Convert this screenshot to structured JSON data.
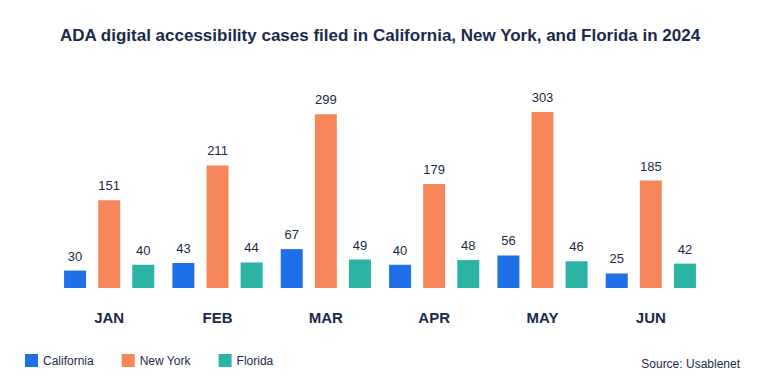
{
  "chart_data": {
    "type": "bar",
    "title": "ADA digital accessibility cases filed in California, New York, and Florida in 2024",
    "categories": [
      "JAN",
      "FEB",
      "MAR",
      "APR",
      "MAY",
      "JUN"
    ],
    "series": [
      {
        "name": "California",
        "color": "#1f6fe8",
        "values": [
          30,
          43,
          67,
          40,
          56,
          25
        ]
      },
      {
        "name": "New York",
        "color": "#f7875a",
        "values": [
          151,
          211,
          299,
          179,
          303,
          185
        ]
      },
      {
        "name": "Florida",
        "color": "#2bb3a3",
        "values": [
          40,
          44,
          49,
          48,
          46,
          42
        ]
      }
    ],
    "data_labels": true,
    "tick_labels": "x",
    "grid": false,
    "legend": "bottom-left",
    "source": "Source: Usablenet"
  }
}
